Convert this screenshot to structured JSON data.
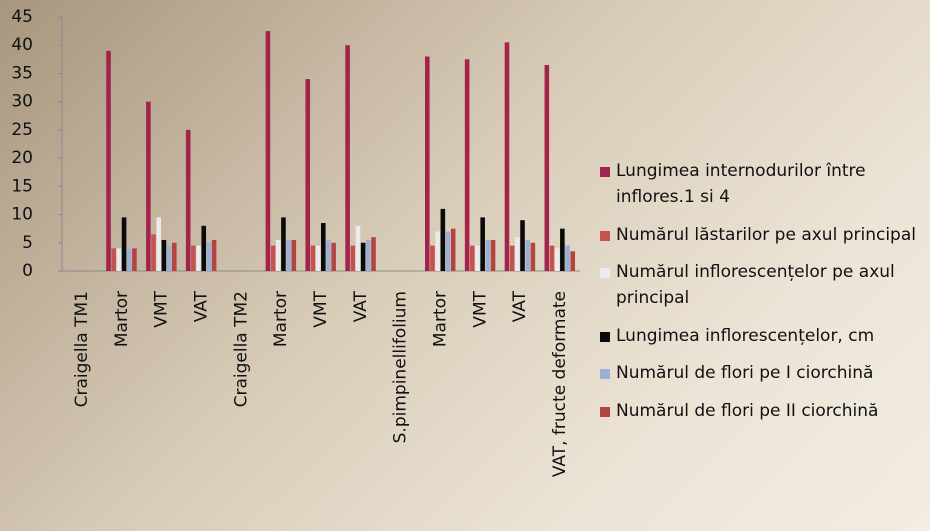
{
  "chart_data": {
    "type": "bar",
    "categories": [
      "Craigella TM1",
      "Martor",
      "VMT",
      "VAT",
      "Craigella TM2",
      "Martor",
      "VMT",
      "VAT",
      "S.pimpinellifolium",
      "Martor",
      "VMT",
      "VAT",
      "VAT, fructe deformate"
    ],
    "series": [
      {
        "name": "Lungimea internodurilor între inflores.1 si 4",
        "color": "#a2234b",
        "values": [
          null,
          39,
          30,
          25,
          null,
          42.5,
          34,
          40,
          null,
          38,
          37.5,
          40.5,
          36.5
        ]
      },
      {
        "name": "Numărul lăstarilor pe axul principal",
        "color": "#c5524e",
        "values": [
          null,
          4,
          6.5,
          4.5,
          null,
          4.5,
          4.5,
          4.5,
          null,
          4.5,
          4.5,
          4.5,
          4.5
        ]
      },
      {
        "name": "Numărul inflorescențelor pe axul principal",
        "color": "#ebebeb",
        "values": [
          null,
          4,
          9.5,
          4.5,
          null,
          5.5,
          4.5,
          8,
          null,
          7,
          4.5,
          6,
          4
        ]
      },
      {
        "name": "Lungimea inflorescențelor, cm",
        "color": "#0a0a0a",
        "values": [
          null,
          9.5,
          5.5,
          8,
          null,
          9.5,
          8.5,
          5,
          null,
          11,
          9.5,
          9,
          7.5
        ]
      },
      {
        "name": "Numărul de flori pe I ciorchină",
        "color": "#9dafd4",
        "values": [
          null,
          4,
          4.5,
          5,
          null,
          5.5,
          5.5,
          5.5,
          null,
          7,
          5.5,
          5.5,
          4.5
        ]
      },
      {
        "name": "Numărul de flori pe II ciorchină",
        "color": "#b4443f",
        "values": [
          null,
          4,
          5,
          5.5,
          null,
          5.5,
          5,
          6,
          null,
          7.5,
          5.5,
          5,
          3.5
        ]
      }
    ],
    "ylim": [
      0,
      45
    ],
    "yticks": [
      0,
      5,
      10,
      15,
      20,
      25,
      30,
      35,
      40,
      45
    ],
    "legend": "right"
  }
}
